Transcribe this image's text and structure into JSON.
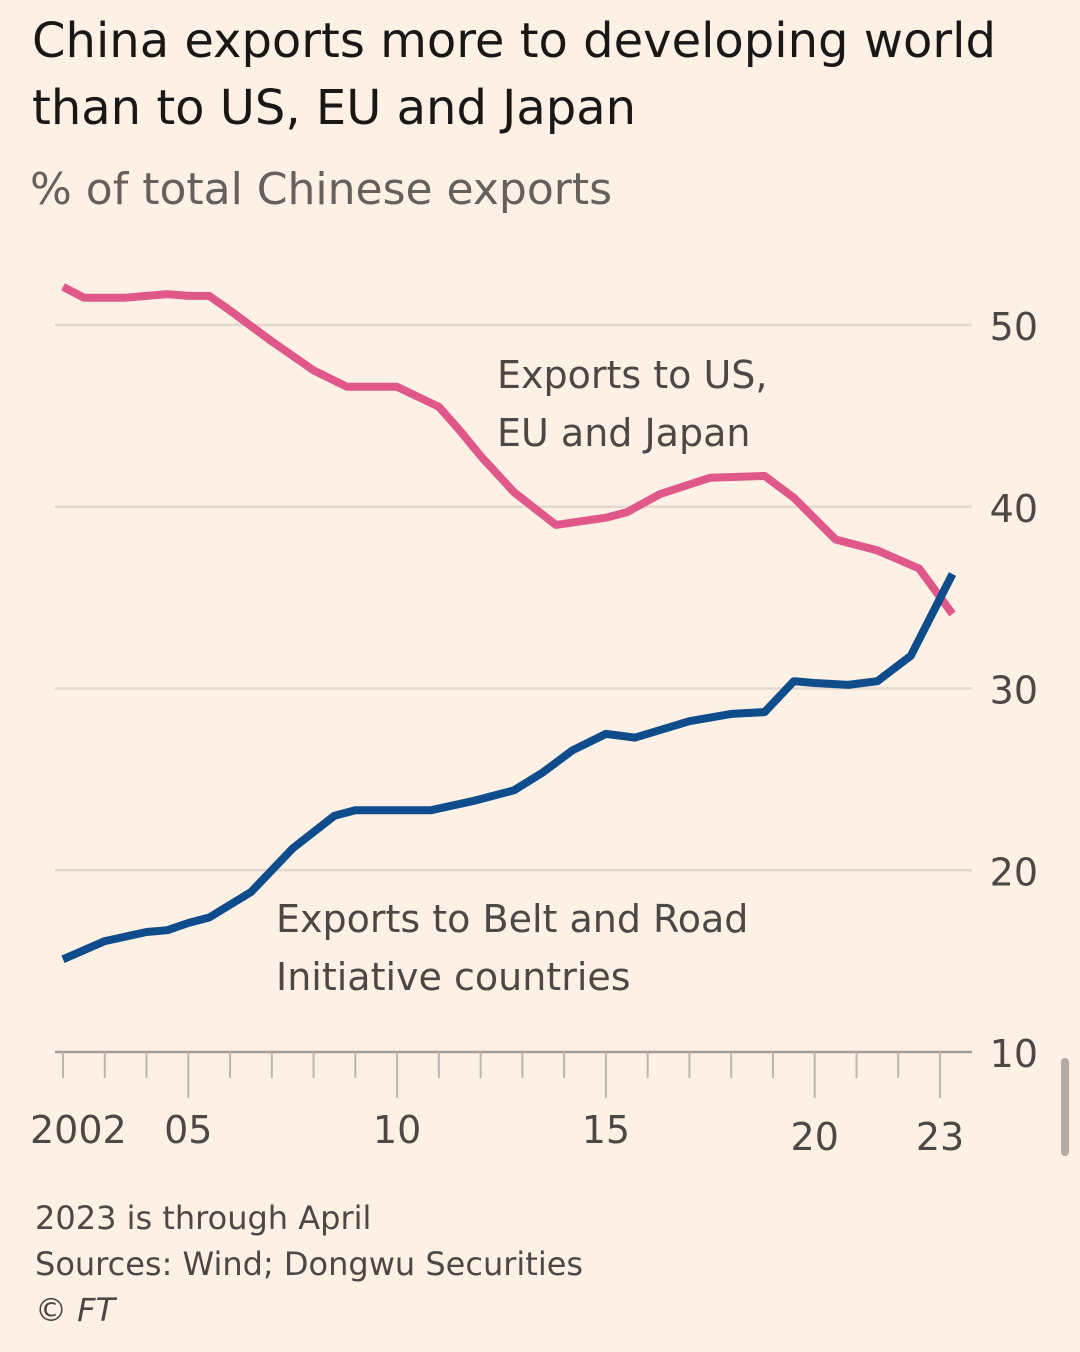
{
  "header": {
    "title": "China exports more to developing world than to US, EU and Japan",
    "subtitle": "% of total Chinese exports"
  },
  "footer": {
    "note": "2023 is through April",
    "sources": "Sources: Wind; Dongwu Securities",
    "credit": "© FT"
  },
  "chart_data": {
    "type": "line",
    "title": "China exports more to developing world than to US, EU and Japan",
    "ylabel": "% of total Chinese exports",
    "xlabel": "",
    "xlim": [
      2002,
      2023.5
    ],
    "ylim": [
      10,
      50
    ],
    "grid": true,
    "y_axis_side": "right",
    "yticks": [
      10,
      20,
      30,
      40,
      50
    ],
    "xticks": [
      {
        "value": 2002,
        "label": "2002"
      },
      {
        "value": 2005,
        "label": "05"
      },
      {
        "value": 2010,
        "label": "10"
      },
      {
        "value": 2015,
        "label": "15"
      },
      {
        "value": 2020,
        "label": "20"
      },
      {
        "value": 2023,
        "label": "23"
      }
    ],
    "series": [
      {
        "name": "Exports to US, EU and Japan",
        "label_lines": [
          "Exports to US,",
          "EU and Japan"
        ],
        "color": "#e0588a",
        "points": [
          [
            2002.0,
            52.1
          ],
          [
            2002.5,
            51.5
          ],
          [
            2003.0,
            51.5
          ],
          [
            2003.5,
            51.5
          ],
          [
            2004.0,
            51.6
          ],
          [
            2004.5,
            51.7
          ],
          [
            2005.0,
            51.6
          ],
          [
            2005.5,
            51.6
          ],
          [
            2006.0,
            50.8
          ],
          [
            2007.0,
            49.1
          ],
          [
            2008.0,
            47.5
          ],
          [
            2008.8,
            46.6
          ],
          [
            2010.0,
            46.6
          ],
          [
            2011.0,
            45.5
          ],
          [
            2011.5,
            44.2
          ],
          [
            2012.0,
            42.8
          ],
          [
            2012.8,
            40.8
          ],
          [
            2013.8,
            39.0
          ],
          [
            2015.0,
            39.4
          ],
          [
            2015.5,
            39.7
          ],
          [
            2016.3,
            40.7
          ],
          [
            2017.5,
            41.6
          ],
          [
            2018.8,
            41.7
          ],
          [
            2019.5,
            40.5
          ],
          [
            2020.5,
            38.2
          ],
          [
            2021.5,
            37.6
          ],
          [
            2022.5,
            36.6
          ],
          [
            2023.3,
            34.1
          ]
        ]
      },
      {
        "name": "Exports to Belt and Road Initiative countries",
        "label_lines": [
          "Exports to Belt and Road",
          "Initiative countries"
        ],
        "color": "#0f4c8c",
        "points": [
          [
            2002.0,
            15.1
          ],
          [
            2002.5,
            15.6
          ],
          [
            2003.0,
            16.1
          ],
          [
            2004.0,
            16.6
          ],
          [
            2004.5,
            16.7
          ],
          [
            2005.0,
            17.1
          ],
          [
            2005.5,
            17.4
          ],
          [
            2006.5,
            18.8
          ],
          [
            2007.5,
            21.2
          ],
          [
            2008.5,
            23.0
          ],
          [
            2009.0,
            23.3
          ],
          [
            2010.0,
            23.3
          ],
          [
            2010.8,
            23.3
          ],
          [
            2011.8,
            23.8
          ],
          [
            2012.8,
            24.4
          ],
          [
            2013.5,
            25.4
          ],
          [
            2014.2,
            26.6
          ],
          [
            2015.0,
            27.5
          ],
          [
            2015.7,
            27.3
          ],
          [
            2017.0,
            28.2
          ],
          [
            2018.0,
            28.6
          ],
          [
            2018.8,
            28.7
          ],
          [
            2019.5,
            30.4
          ],
          [
            2020.0,
            30.3
          ],
          [
            2020.8,
            30.2
          ],
          [
            2021.5,
            30.4
          ],
          [
            2022.3,
            31.8
          ],
          [
            2023.3,
            36.3
          ]
        ]
      }
    ]
  }
}
